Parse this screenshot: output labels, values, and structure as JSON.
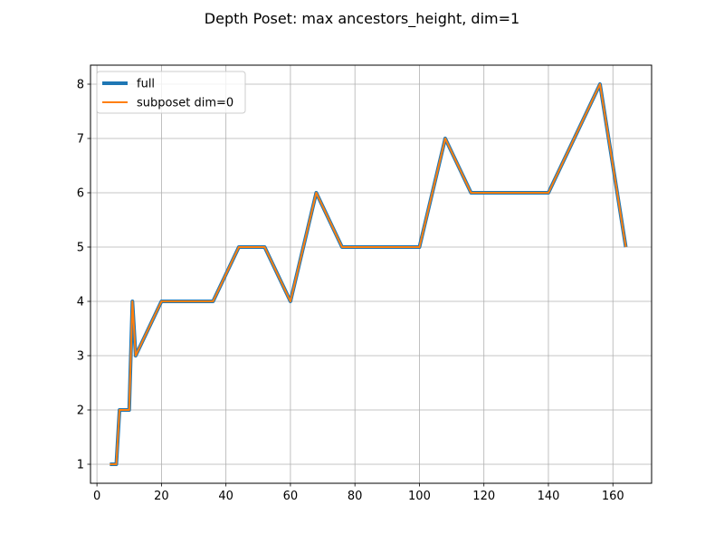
{
  "chart_data": {
    "type": "line",
    "title": "Depth Poset: max ancestors_height, dim=1",
    "xlabel": "",
    "ylabel": "",
    "xlim": [
      -2.0,
      172.0
    ],
    "ylim": [
      0.65,
      8.35
    ],
    "xticks": [
      0,
      20,
      40,
      60,
      80,
      100,
      120,
      140,
      160
    ],
    "yticks": [
      1,
      2,
      3,
      4,
      5,
      6,
      7,
      8
    ],
    "grid": true,
    "legend_position": "top-left",
    "series": [
      {
        "name": "full",
        "color": "#1f77b4",
        "points": [
          [
            4,
            1
          ],
          [
            6,
            1
          ],
          [
            7,
            2
          ],
          [
            10,
            2
          ],
          [
            11,
            4
          ],
          [
            12,
            3
          ],
          [
            20,
            4
          ],
          [
            36,
            4
          ],
          [
            44,
            5
          ],
          [
            52,
            5
          ],
          [
            60,
            4
          ],
          [
            68,
            6
          ],
          [
            76,
            5
          ],
          [
            100,
            5
          ],
          [
            108,
            7
          ],
          [
            116,
            6
          ],
          [
            140,
            6
          ],
          [
            156,
            8
          ],
          [
            164,
            5
          ]
        ]
      },
      {
        "name": "subposet dim=0",
        "color": "#ff7f0e",
        "points": [
          [
            4,
            1
          ],
          [
            6,
            1
          ],
          [
            7,
            2
          ],
          [
            10,
            2
          ],
          [
            11,
            4
          ],
          [
            12,
            3
          ],
          [
            20,
            4
          ],
          [
            36,
            4
          ],
          [
            44,
            5
          ],
          [
            52,
            5
          ],
          [
            60,
            4
          ],
          [
            68,
            6
          ],
          [
            76,
            5
          ],
          [
            100,
            5
          ],
          [
            108,
            7
          ],
          [
            116,
            6
          ],
          [
            140,
            6
          ],
          [
            156,
            8
          ],
          [
            164,
            5
          ]
        ]
      }
    ]
  }
}
